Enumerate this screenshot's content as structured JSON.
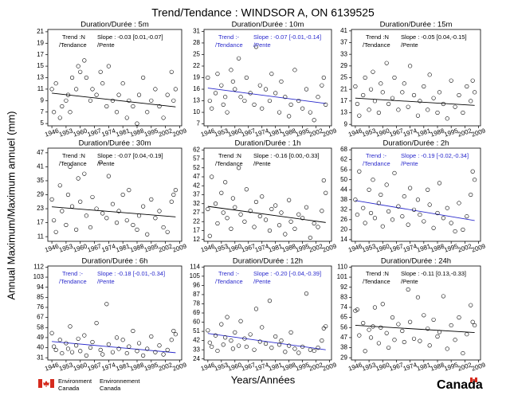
{
  "title": "Trend/Tendance : WINDSOR A, ON  6139525",
  "ylabel": "Annual Maximum/Maximum annuel (mm)",
  "xlabel": "Years/Années",
  "footer": {
    "en": "Environment",
    "en2": "Canada",
    "fr": "Environnement",
    "fr2": "Canada",
    "wordmark": "Canada"
  },
  "chart_data": [
    {
      "type": "scatter",
      "title": "Duration/Durée : 5m",
      "xlim": [
        1944,
        2010
      ],
      "xticks": [
        1946,
        1953,
        1960,
        1967,
        1974,
        1981,
        1988,
        1995,
        2002,
        2009
      ],
      "ylim": [
        4.6,
        21.4
      ],
      "yticks": [
        5,
        7,
        9,
        11,
        13,
        15,
        17,
        19,
        21
      ],
      "x": [
        1946,
        1947,
        1948,
        1950,
        1951,
        1953,
        1954,
        1955,
        1956,
        1958,
        1959,
        1960,
        1962,
        1963,
        1965,
        1966,
        1968,
        1970,
        1971,
        1973,
        1974,
        1976,
        1978,
        1979,
        1981,
        1983,
        1984,
        1986,
        1988,
        1989,
        1991,
        1993,
        1995,
        1997,
        1999,
        2001,
        2003,
        2005,
        2006,
        2007
      ],
      "values": [
        11,
        7,
        12,
        6,
        8,
        9,
        10,
        7,
        13,
        11,
        15,
        14,
        16,
        13,
        9,
        11,
        10,
        14,
        12,
        8,
        15,
        9,
        7,
        10,
        12,
        6,
        9,
        8,
        5,
        10,
        13,
        7,
        9,
        11,
        8,
        6,
        10,
        14,
        9,
        11
      ],
      "trend": {
        "x": [
          1946,
          2007
        ],
        "values": [
          10.3,
          7.9
        ],
        "color": "#000000",
        "label": "Trend :N",
        "label2": "/Tendance",
        "slope": "Slope : -0.03 [0.01,-0.07]",
        "slope2": "/Pente"
      }
    },
    {
      "type": "scatter",
      "title": "Duration/Durée : 10m",
      "xlim": [
        1944,
        2010
      ],
      "xticks": [
        1946,
        1953,
        1960,
        1967,
        1974,
        1981,
        1988,
        1995,
        2002,
        2009
      ],
      "ylim": [
        6.5,
        31.5
      ],
      "yticks": [
        7,
        10,
        13,
        16,
        19,
        22,
        25,
        28,
        31
      ],
      "x": [
        1946,
        1947,
        1948,
        1950,
        1951,
        1953,
        1954,
        1955,
        1956,
        1958,
        1959,
        1960,
        1962,
        1963,
        1965,
        1966,
        1968,
        1970,
        1971,
        1973,
        1974,
        1976,
        1978,
        1979,
        1981,
        1983,
        1984,
        1986,
        1988,
        1989,
        1991,
        1993,
        1995,
        1997,
        1999,
        2001,
        2003,
        2005,
        2006,
        2007
      ],
      "values": [
        19,
        13,
        11,
        15,
        20,
        17,
        12,
        14,
        10,
        21,
        18,
        16,
        24,
        14,
        13,
        19,
        15,
        12,
        27,
        17,
        11,
        16,
        13,
        20,
        15,
        10,
        18,
        14,
        9,
        12,
        21,
        13,
        11,
        16,
        10,
        8,
        14,
        17,
        19,
        12
      ],
      "trend": {
        "x": [
          1946,
          2007
        ],
        "values": [
          16.3,
          12.3
        ],
        "color": "#2a2acc",
        "label": "Trend :-",
        "label2": "/Tendance",
        "slope": "Slope : -0.07 [-0.01,-0.14]",
        "slope2": "/Pente"
      }
    },
    {
      "type": "scatter",
      "title": "Duration/Durée : 15m",
      "xlim": [
        1944,
        2010
      ],
      "xticks": [
        1946,
        1953,
        1960,
        1967,
        1974,
        1981,
        1988,
        1995,
        2002,
        2009
      ],
      "ylim": [
        8.5,
        41.5
      ],
      "yticks": [
        9,
        13,
        17,
        21,
        25,
        29,
        33,
        37,
        41
      ],
      "x": [
        1946,
        1947,
        1948,
        1950,
        1951,
        1953,
        1954,
        1955,
        1956,
        1958,
        1959,
        1960,
        1962,
        1963,
        1965,
        1966,
        1968,
        1970,
        1971,
        1973,
        1974,
        1976,
        1978,
        1979,
        1981,
        1983,
        1984,
        1986,
        1988,
        1989,
        1991,
        1993,
        1995,
        1997,
        1999,
        2001,
        2003,
        2005,
        2006,
        2007
      ],
      "values": [
        22,
        16,
        12,
        19,
        25,
        14,
        21,
        27,
        17,
        13,
        23,
        20,
        30,
        16,
        18,
        25,
        14,
        20,
        23,
        15,
        29,
        19,
        12,
        17,
        22,
        14,
        26,
        18,
        13,
        20,
        16,
        11,
        24,
        15,
        19,
        13,
        22,
        17,
        24,
        20
      ],
      "trend": {
        "x": [
          1946,
          2007
        ],
        "values": [
          18.0,
          15.5
        ],
        "color": "#000000",
        "label": "Trend :N",
        "label2": "/Tendance",
        "slope": "Slope : -0.05 [0.04,-0.15]",
        "slope2": "/Pente"
      }
    },
    {
      "type": "scatter",
      "title": "Duration/Durée : 30m",
      "xlim": [
        1944,
        2010
      ],
      "xticks": [
        1946,
        1953,
        1960,
        1967,
        1974,
        1981,
        1988,
        1995,
        2002,
        2009
      ],
      "ylim": [
        9,
        49
      ],
      "yticks": [
        11,
        17,
        23,
        29,
        35,
        41,
        47
      ],
      "x": [
        1946,
        1947,
        1948,
        1950,
        1951,
        1953,
        1954,
        1955,
        1956,
        1958,
        1959,
        1960,
        1962,
        1963,
        1965,
        1966,
        1968,
        1970,
        1971,
        1973,
        1974,
        1976,
        1978,
        1979,
        1981,
        1983,
        1984,
        1986,
        1988,
        1989,
        1991,
        1993,
        1995,
        1997,
        1999,
        2001,
        2003,
        2005,
        2006,
        2007
      ],
      "values": [
        27,
        18,
        13,
        33,
        22,
        16,
        29,
        41,
        24,
        14,
        36,
        26,
        38,
        20,
        15,
        28,
        23,
        43,
        21,
        19,
        37,
        25,
        17,
        22,
        29,
        18,
        31,
        16,
        14,
        20,
        24,
        12,
        27,
        19,
        22,
        15,
        13,
        26,
        29,
        31
      ],
      "trend": {
        "x": [
          1946,
          2007
        ],
        "values": [
          23.8,
          19.5
        ],
        "color": "#000000",
        "label": "Trend :N",
        "label2": "/Tendance",
        "slope": "Slope : -0.07 [0.04,-0.19]",
        "slope2": "/Pente"
      }
    },
    {
      "type": "scatter",
      "title": "Duration/Durée : 1h",
      "xlim": [
        1944,
        2010
      ],
      "xticks": [
        1946,
        1953,
        1960,
        1967,
        1974,
        1981,
        1988,
        1995,
        2002,
        2009
      ],
      "ylim": [
        11,
        63
      ],
      "yticks": [
        12,
        17,
        22,
        27,
        32,
        37,
        42,
        47,
        52,
        57,
        62
      ],
      "x": [
        1946,
        1947,
        1948,
        1950,
        1951,
        1953,
        1954,
        1955,
        1956,
        1958,
        1959,
        1960,
        1962,
        1963,
        1965,
        1966,
        1968,
        1970,
        1971,
        1973,
        1974,
        1976,
        1978,
        1979,
        1981,
        1983,
        1984,
        1986,
        1988,
        1989,
        1991,
        1993,
        1995,
        1997,
        1999,
        2001,
        2003,
        2005,
        2006,
        2007
      ],
      "values": [
        29,
        14,
        47,
        32,
        21,
        38,
        27,
        44,
        24,
        18,
        35,
        30,
        52,
        26,
        22,
        40,
        28,
        19,
        33,
        25,
        36,
        23,
        17,
        29,
        31,
        20,
        27,
        15,
        34,
        22,
        18,
        26,
        24,
        30,
        13,
        21,
        19,
        28,
        45,
        38
      ],
      "trend": {
        "x": [
          1946,
          2007
        ],
        "values": [
          30.5,
          21.5
        ],
        "color": "#000000",
        "label": "Trend :N",
        "label2": "/Tendance",
        "slope": "Slope : -0.16 [0.00,-0.33]",
        "slope2": "/Pente"
      }
    },
    {
      "type": "scatter",
      "title": "Duration/Durée : 2h",
      "xlim": [
        1944,
        2010
      ],
      "xticks": [
        1946,
        1953,
        1960,
        1967,
        1974,
        1981,
        1988,
        1995,
        2002,
        2009
      ],
      "ylim": [
        13,
        69
      ],
      "yticks": [
        14,
        20,
        26,
        32,
        38,
        44,
        50,
        56,
        62,
        68
      ],
      "x": [
        1946,
        1947,
        1948,
        1950,
        1951,
        1953,
        1954,
        1955,
        1956,
        1958,
        1959,
        1960,
        1962,
        1963,
        1965,
        1966,
        1968,
        1970,
        1971,
        1973,
        1974,
        1976,
        1978,
        1979,
        1981,
        1983,
        1984,
        1986,
        1988,
        1989,
        1991,
        1993,
        1995,
        1997,
        1999,
        2001,
        2003,
        2005,
        2006,
        2007
      ],
      "values": [
        38,
        29,
        55,
        33,
        24,
        44,
        30,
        50,
        27,
        36,
        41,
        22,
        47,
        31,
        26,
        54,
        34,
        28,
        40,
        23,
        45,
        32,
        38,
        29,
        25,
        44,
        35,
        21,
        30,
        48,
        27,
        33,
        24,
        19,
        36,
        20,
        28,
        41,
        55,
        50
      ],
      "trend": {
        "x": [
          1946,
          2007
        ],
        "values": [
          37.5,
          25.5
        ],
        "color": "#2a2acc",
        "label": "Trend :-",
        "label2": "/Tendance",
        "slope": "Slope : -0.19 [-0.02,-0.34]",
        "slope2": "/Pente"
      }
    },
    {
      "type": "scatter",
      "title": "Duration/Durée : 6h",
      "xlim": [
        1944,
        2010
      ],
      "xticks": [
        1946,
        1953,
        1960,
        1967,
        1974,
        1981,
        1988,
        1995,
        2002,
        2009
      ],
      "ylim": [
        29,
        113
      ],
      "yticks": [
        31,
        40,
        49,
        58,
        67,
        76,
        85,
        94,
        103,
        112
      ],
      "x": [
        1946,
        1947,
        1948,
        1950,
        1951,
        1953,
        1954,
        1955,
        1956,
        1958,
        1959,
        1960,
        1962,
        1963,
        1965,
        1966,
        1968,
        1970,
        1971,
        1973,
        1974,
        1976,
        1978,
        1979,
        1981,
        1983,
        1984,
        1986,
        1988,
        1989,
        1991,
        1993,
        1995,
        1997,
        1999,
        2001,
        2003,
        2005,
        2006,
        2007
      ],
      "values": [
        53,
        41,
        38,
        47,
        35,
        44,
        39,
        59,
        36,
        42,
        48,
        37,
        51,
        33,
        40,
        45,
        62,
        38,
        34,
        79,
        43,
        36,
        49,
        39,
        47,
        35,
        41,
        55,
        37,
        44,
        33,
        39,
        50,
        36,
        42,
        34,
        38,
        47,
        55,
        52
      ],
      "trend": {
        "x": [
          1946,
          2007
        ],
        "values": [
          45.5,
          35.5
        ],
        "color": "#2a2acc",
        "label": "Trend :-",
        "label2": "/Tendance",
        "slope": "Slope : -0.18 [-0.01,-0.34]",
        "slope2": "/Pente"
      }
    },
    {
      "type": "scatter",
      "title": "Duration/Durée : 12h",
      "xlim": [
        1944,
        2010
      ],
      "xticks": [
        1946,
        1953,
        1960,
        1967,
        1974,
        1981,
        1988,
        1995,
        2002,
        2009
      ],
      "ylim": [
        23,
        115
      ],
      "yticks": [
        24,
        33,
        42,
        51,
        60,
        69,
        78,
        87,
        96,
        105,
        114
      ],
      "x": [
        1946,
        1947,
        1948,
        1950,
        1951,
        1953,
        1954,
        1955,
        1956,
        1958,
        1959,
        1960,
        1962,
        1963,
        1965,
        1966,
        1968,
        1970,
        1971,
        1973,
        1974,
        1976,
        1978,
        1979,
        1981,
        1983,
        1984,
        1986,
        1988,
        1989,
        1991,
        1993,
        1995,
        1997,
        1999,
        2001,
        2003,
        2005,
        2006,
        2007
      ],
      "values": [
        52,
        40,
        36,
        47,
        32,
        58,
        38,
        45,
        65,
        42,
        34,
        50,
        37,
        61,
        44,
        36,
        48,
        33,
        73,
        41,
        55,
        39,
        81,
        35,
        46,
        38,
        42,
        31,
        37,
        50,
        34,
        30,
        36,
        88,
        33,
        32,
        35,
        42,
        54,
        56
      ],
      "trend": {
        "x": [
          1946,
          2007
        ],
        "values": [
          49,
          33
        ],
        "color": "#2a2acc",
        "label": "Trend :-",
        "label2": "/Tendance",
        "slope": "Slope : -0.20 [-0.04,-0.39]",
        "slope2": "/Pente"
      }
    },
    {
      "type": "scatter",
      "title": "Duration/Durée : 24h",
      "xlim": [
        1944,
        2010
      ],
      "xticks": [
        1946,
        1953,
        1960,
        1967,
        1974,
        1981,
        1988,
        1995,
        2002,
        2009
      ],
      "ylim": [
        27,
        111
      ],
      "yticks": [
        29,
        38,
        47,
        56,
        65,
        74,
        83,
        92,
        101,
        110
      ],
      "x": [
        1946,
        1947,
        1948,
        1950,
        1951,
        1953,
        1954,
        1955,
        1956,
        1958,
        1959,
        1960,
        1962,
        1963,
        1965,
        1966,
        1968,
        1970,
        1971,
        1973,
        1974,
        1976,
        1978,
        1979,
        1981,
        1983,
        1984,
        1986,
        1988,
        1989,
        1991,
        1993,
        1995,
        1997,
        1999,
        2001,
        2003,
        2005,
        2006,
        2007
      ],
      "values": [
        71,
        72,
        49,
        60,
        35,
        54,
        47,
        57,
        74,
        42,
        56,
        77,
        51,
        38,
        65,
        45,
        59,
        53,
        43,
        90,
        61,
        46,
        83,
        44,
        67,
        55,
        40,
        63,
        48,
        52,
        84,
        37,
        58,
        45,
        65,
        33,
        50,
        76,
        61,
        58
      ],
      "trend": {
        "x": [
          1946,
          2007
        ],
        "values": [
          58,
          51.5
        ],
        "color": "#000000",
        "label": "Trend :N",
        "label2": "/Tendance",
        "slope": "Slope : -0.11 [0.13,-0.33]",
        "slope2": "/Pente"
      }
    }
  ]
}
